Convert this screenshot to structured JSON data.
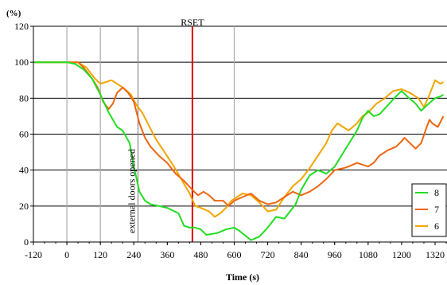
{
  "chart_data": {
    "type": "line",
    "title": "",
    "xlabel": "Time (s)",
    "ylabel": "(%)",
    "xlim": [
      -120,
      1320
    ],
    "ylim": [
      0,
      120
    ],
    "x_ticks": [
      -120,
      0,
      120,
      240,
      360,
      480,
      600,
      720,
      840,
      960,
      1080,
      1200,
      1320
    ],
    "y_ticks": [
      0,
      20,
      40,
      60,
      80,
      100,
      120
    ],
    "grid": "horizontal",
    "legend": "right",
    "series": [
      {
        "name": "8",
        "color": "#22dd22",
        "points": [
          [
            -120,
            100
          ],
          [
            0,
            100
          ],
          [
            30,
            99
          ],
          [
            60,
            96
          ],
          [
            90,
            91
          ],
          [
            120,
            82
          ],
          [
            150,
            72
          ],
          [
            180,
            64
          ],
          [
            200,
            62
          ],
          [
            225,
            55
          ],
          [
            240,
            42
          ],
          [
            260,
            28
          ],
          [
            280,
            23
          ],
          [
            300,
            21
          ],
          [
            330,
            20
          ],
          [
            360,
            19
          ],
          [
            400,
            16
          ],
          [
            420,
            9
          ],
          [
            440,
            8
          ],
          [
            460,
            8
          ],
          [
            480,
            7
          ],
          [
            500,
            4
          ],
          [
            540,
            5
          ],
          [
            570,
            7
          ],
          [
            600,
            8
          ],
          [
            620,
            6
          ],
          [
            660,
            1
          ],
          [
            690,
            3
          ],
          [
            720,
            8
          ],
          [
            750,
            14
          ],
          [
            780,
            13
          ],
          [
            800,
            17
          ],
          [
            820,
            21
          ],
          [
            840,
            29
          ],
          [
            870,
            37
          ],
          [
            900,
            40
          ],
          [
            930,
            38
          ],
          [
            960,
            42
          ],
          [
            1000,
            52
          ],
          [
            1040,
            62
          ],
          [
            1060,
            69
          ],
          [
            1080,
            73
          ],
          [
            1100,
            70
          ],
          [
            1120,
            71
          ],
          [
            1150,
            76
          ],
          [
            1180,
            81
          ],
          [
            1200,
            84
          ],
          [
            1220,
            81
          ],
          [
            1250,
            77
          ],
          [
            1270,
            73
          ],
          [
            1290,
            76
          ],
          [
            1320,
            80
          ],
          [
            1340,
            81
          ],
          [
            1350,
            82
          ]
        ]
      },
      {
        "name": "7",
        "color": "#ee6611",
        "points": [
          [
            -120,
            100
          ],
          [
            0,
            100
          ],
          [
            40,
            100
          ],
          [
            60,
            97
          ],
          [
            90,
            91
          ],
          [
            110,
            86
          ],
          [
            130,
            78
          ],
          [
            150,
            74
          ],
          [
            165,
            77
          ],
          [
            180,
            83
          ],
          [
            200,
            86
          ],
          [
            220,
            83
          ],
          [
            240,
            78
          ],
          [
            260,
            66
          ],
          [
            280,
            58
          ],
          [
            300,
            53
          ],
          [
            330,
            48
          ],
          [
            360,
            44
          ],
          [
            390,
            38
          ],
          [
            420,
            34
          ],
          [
            450,
            29
          ],
          [
            470,
            26
          ],
          [
            490,
            28
          ],
          [
            510,
            26
          ],
          [
            530,
            23
          ],
          [
            560,
            23
          ],
          [
            580,
            20
          ],
          [
            600,
            23
          ],
          [
            630,
            25
          ],
          [
            660,
            27
          ],
          [
            690,
            23
          ],
          [
            720,
            21
          ],
          [
            750,
            22
          ],
          [
            780,
            25
          ],
          [
            810,
            28
          ],
          [
            840,
            26
          ],
          [
            870,
            28
          ],
          [
            900,
            31
          ],
          [
            930,
            35
          ],
          [
            960,
            40
          ],
          [
            990,
            41
          ],
          [
            1010,
            42
          ],
          [
            1040,
            44
          ],
          [
            1060,
            43
          ],
          [
            1080,
            42
          ],
          [
            1100,
            44
          ],
          [
            1120,
            48
          ],
          [
            1150,
            51
          ],
          [
            1180,
            53
          ],
          [
            1200,
            56
          ],
          [
            1210,
            58
          ],
          [
            1230,
            55
          ],
          [
            1250,
            52
          ],
          [
            1270,
            55
          ],
          [
            1290,
            64
          ],
          [
            1300,
            68
          ],
          [
            1310,
            66
          ],
          [
            1330,
            64
          ],
          [
            1350,
            70
          ]
        ]
      },
      {
        "name": "6",
        "color": "#f2a500",
        "points": [
          [
            -120,
            100
          ],
          [
            0,
            100
          ],
          [
            40,
            100
          ],
          [
            70,
            97
          ],
          [
            100,
            91
          ],
          [
            120,
            88
          ],
          [
            140,
            89
          ],
          [
            160,
            90
          ],
          [
            180,
            88
          ],
          [
            200,
            86
          ],
          [
            230,
            82
          ],
          [
            250,
            76
          ],
          [
            270,
            72
          ],
          [
            290,
            66
          ],
          [
            320,
            57
          ],
          [
            350,
            50
          ],
          [
            380,
            43
          ],
          [
            410,
            35
          ],
          [
            440,
            27
          ],
          [
            460,
            20
          ],
          [
            480,
            19
          ],
          [
            510,
            17
          ],
          [
            530,
            14
          ],
          [
            550,
            16
          ],
          [
            570,
            19
          ],
          [
            590,
            23
          ],
          [
            610,
            25
          ],
          [
            630,
            27
          ],
          [
            660,
            26
          ],
          [
            690,
            22
          ],
          [
            720,
            17
          ],
          [
            750,
            18
          ],
          [
            780,
            25
          ],
          [
            810,
            31
          ],
          [
            840,
            35
          ],
          [
            870,
            41
          ],
          [
            900,
            48
          ],
          [
            930,
            55
          ],
          [
            950,
            62
          ],
          [
            970,
            66
          ],
          [
            990,
            64
          ],
          [
            1010,
            62
          ],
          [
            1040,
            66
          ],
          [
            1060,
            70
          ],
          [
            1080,
            72
          ],
          [
            1110,
            77
          ],
          [
            1140,
            80
          ],
          [
            1170,
            84
          ],
          [
            1200,
            85
          ],
          [
            1230,
            83
          ],
          [
            1260,
            80
          ],
          [
            1280,
            75
          ],
          [
            1300,
            82
          ],
          [
            1320,
            90
          ],
          [
            1340,
            88
          ],
          [
            1350,
            89
          ]
        ]
      }
    ],
    "vlines": [
      {
        "x": 0,
        "color": "#aaaaaa"
      },
      {
        "x": 120,
        "color": "#aaaaaa"
      },
      {
        "x": 255,
        "color": "#888888"
      },
      {
        "x": 450,
        "color": "#dd0000"
      },
      {
        "x": 600,
        "color": "#aaaaaa"
      }
    ],
    "annotations": [
      {
        "text": "RSET",
        "x": 450
      },
      {
        "text": "external doors opened",
        "x": 255
      }
    ]
  }
}
